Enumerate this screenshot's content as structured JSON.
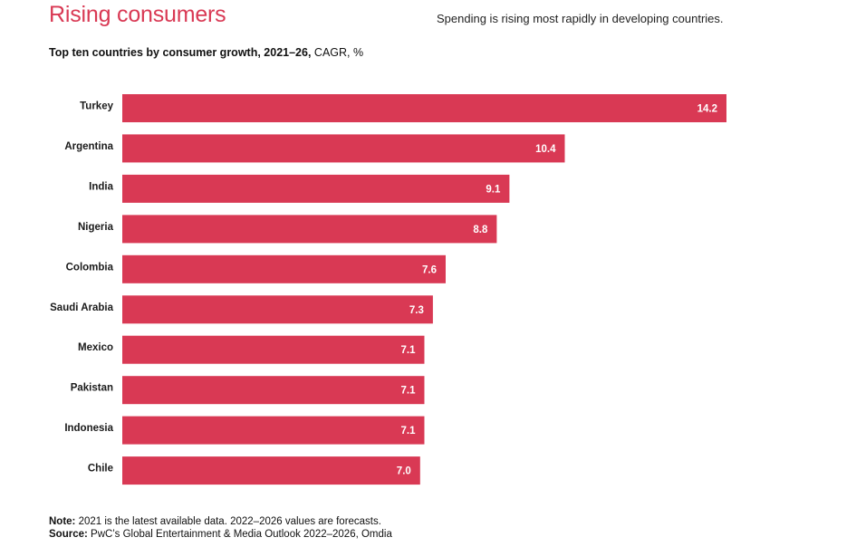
{
  "header": {
    "title": "Rising consumers",
    "tagline": "Spending is rising most rapidly in developing countries."
  },
  "subtitle": {
    "bold": "Top ten countries by consumer growth, 2021–26,",
    "normal": " CAGR, %"
  },
  "footer": {
    "note_label": "Note:",
    "note_text": " 2021 is the latest available data. 2022–2026 values are forecasts.",
    "source_label": "Source:",
    "source_text": " PwC’s Global Entertainment & Media Outlook 2022–2026, Omdia"
  },
  "colors": {
    "bar": "#d93954",
    "accent": "#d93954"
  },
  "chart_data": {
    "type": "bar",
    "orientation": "horizontal",
    "categories": [
      "Turkey",
      "Argentina",
      "India",
      "Nigeria",
      "Colombia",
      "Saudi Arabia",
      "Mexico",
      "Pakistan",
      "Indonesia",
      "Chile"
    ],
    "values": [
      14.2,
      10.4,
      9.1,
      8.8,
      7.6,
      7.3,
      7.1,
      7.1,
      7.1,
      7.0
    ],
    "value_labels": [
      "14.2",
      "10.4",
      "9.1",
      "8.8",
      "7.6",
      "7.3",
      "7.1",
      "7.1",
      "7.1",
      "7.0"
    ],
    "xlim": [
      0,
      14.2
    ],
    "grid": false
  }
}
